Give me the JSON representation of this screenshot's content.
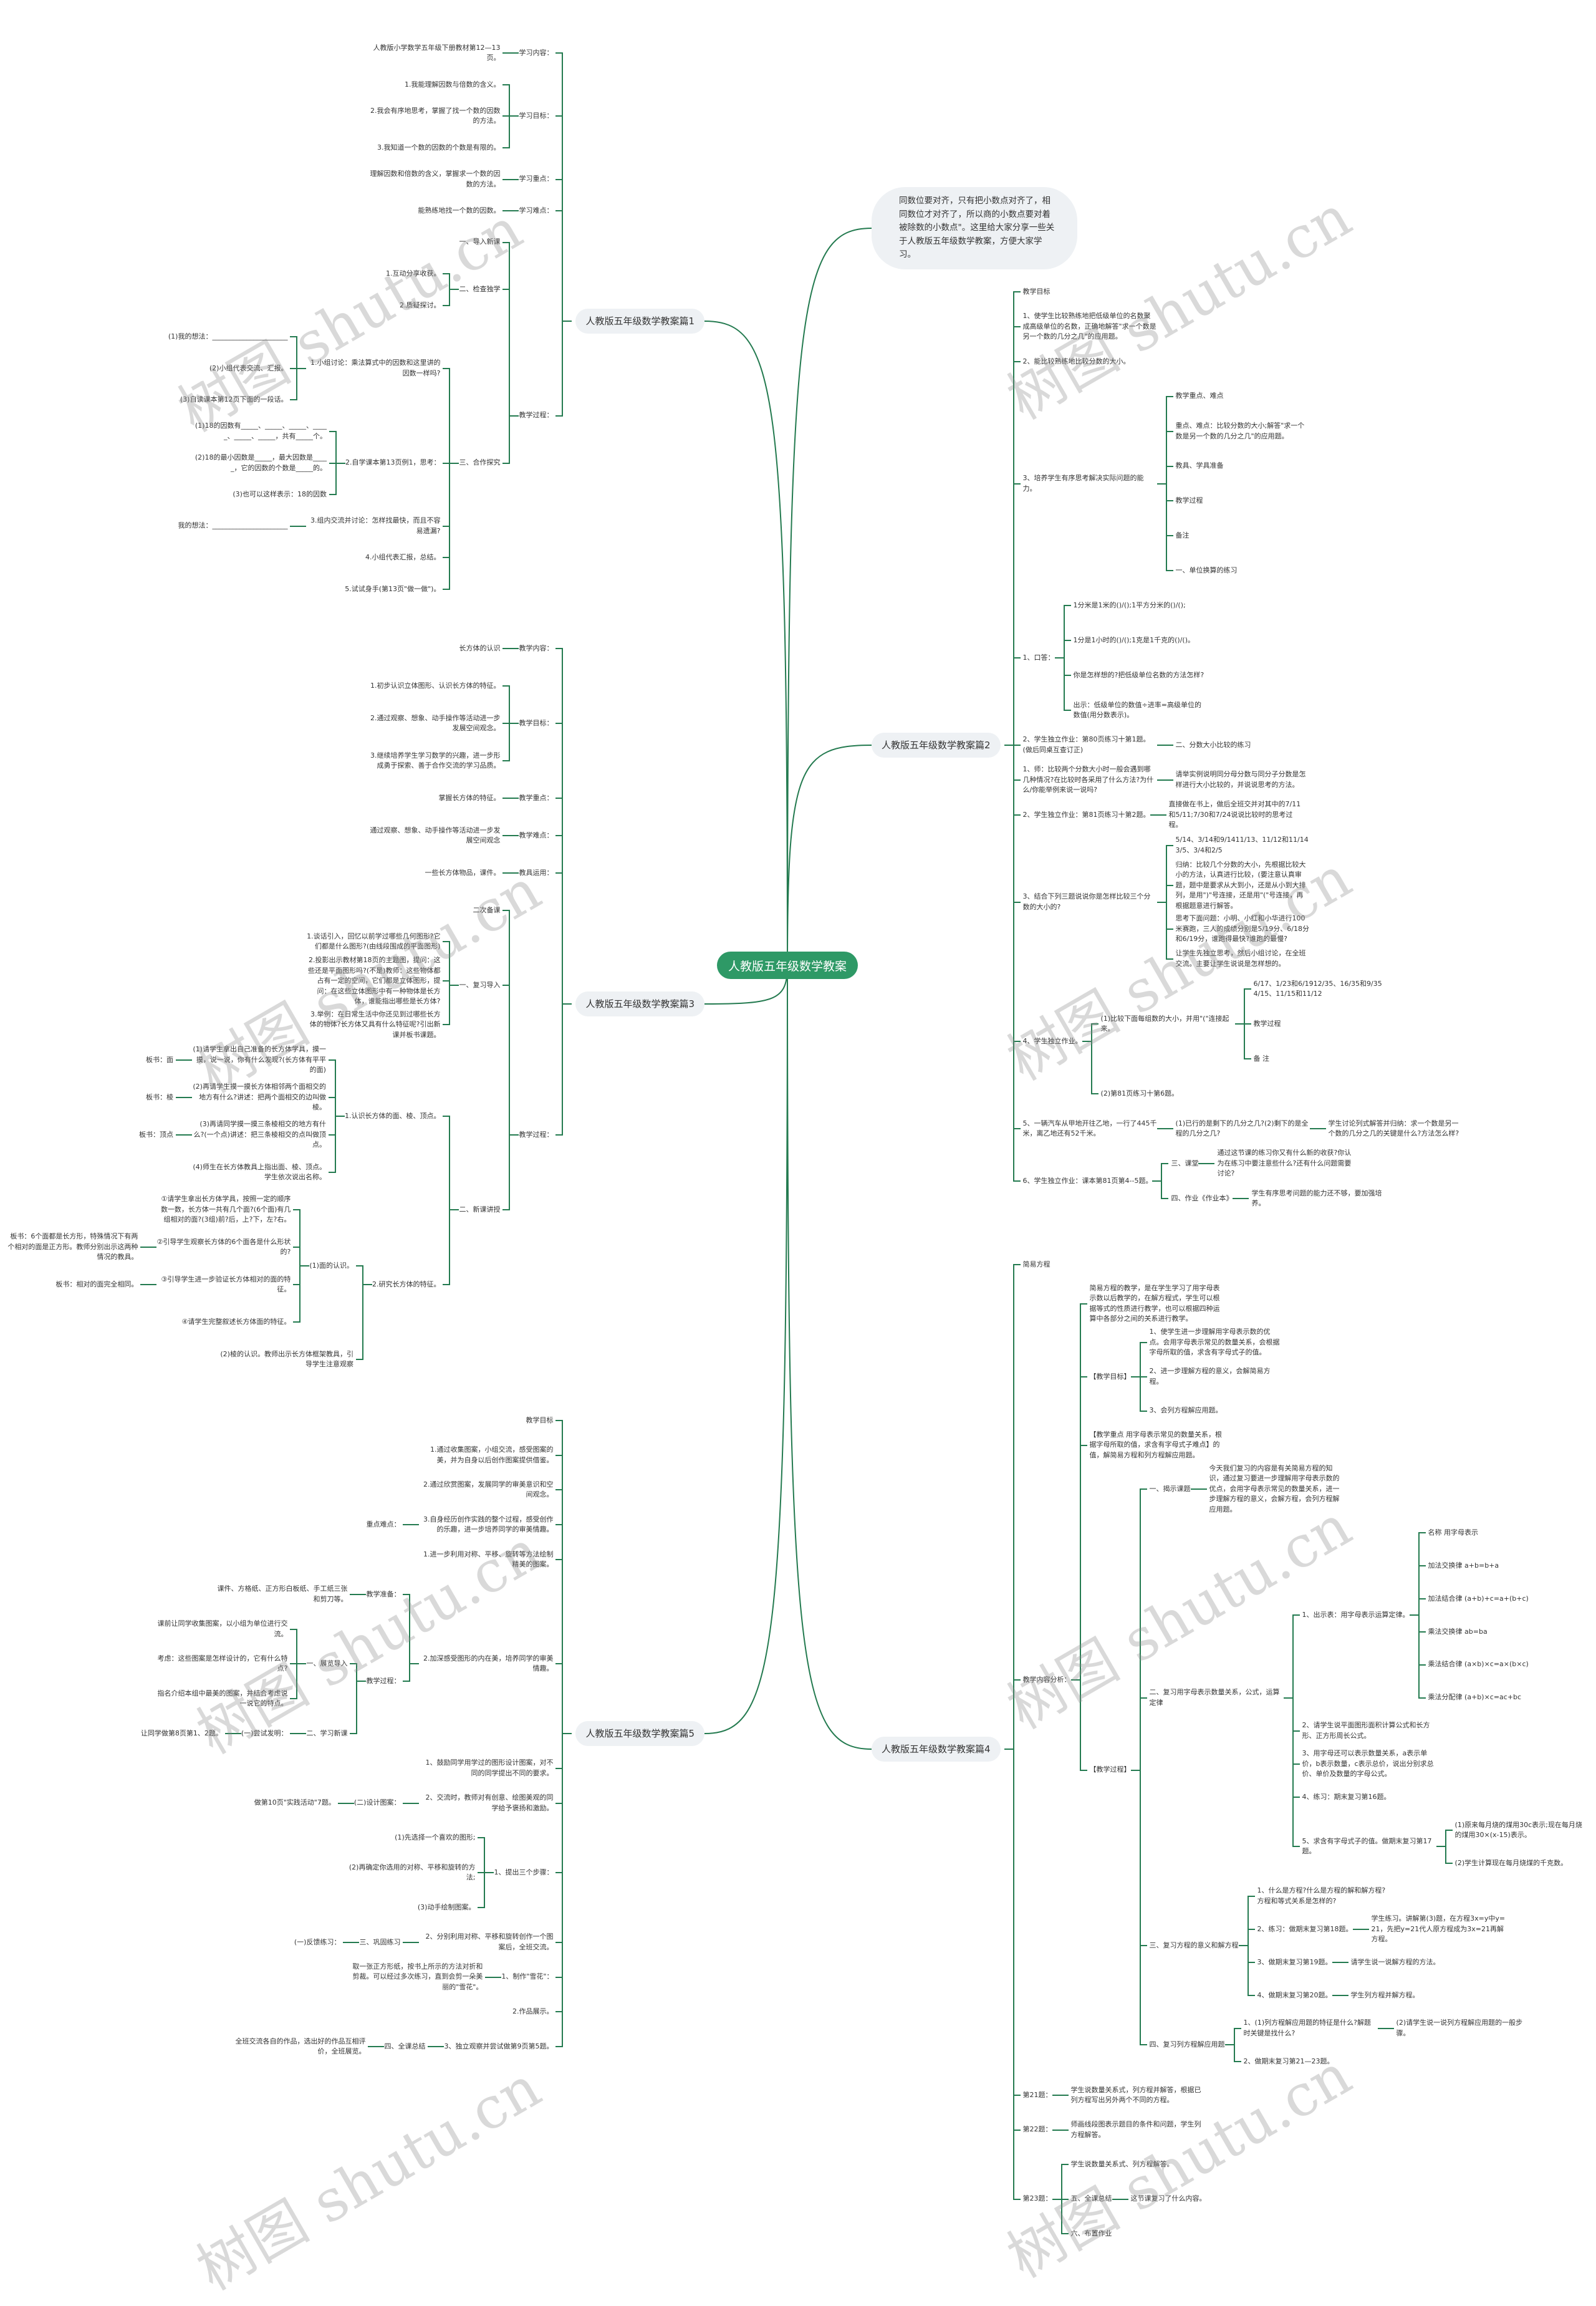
{
  "center": "人教版五年级数学教案",
  "intro": "同数位要对齐，只有把小数点对齐了，相同数位才对齐了，所以商的小数点要对着被除数的小数点\"。这里给大家分享一些关于人教版五年级数学教案，方便大家学习。",
  "watermark": "树图 shutu.cn",
  "colors": {
    "center": "#2e9966",
    "line": "#237a4f",
    "node_bg": "#eef1f4"
  },
  "left": [
    {
      "text": "人教版五年级数学教案篇1",
      "children": [
        {
          "text": "学习内容：",
          "children": [
            {
              "text": "人教版小学数学五年级下册教材第12—13页。"
            }
          ]
        },
        {
          "text": "学习目标：",
          "children": [
            {
              "text": "1.我能理解因数与倍数的含义。"
            },
            {
              "text": "2.我会有序地思考，掌握了找一个数的因数的方法。"
            },
            {
              "text": "3.我知道一个数的因数的个数是有限的。"
            }
          ]
        },
        {
          "text": "学习重点：",
          "children": [
            {
              "text": "理解因数和倍数的含义，掌握求一个数的因数的方法。"
            }
          ]
        },
        {
          "text": "学习难点：",
          "children": [
            {
              "text": "能熟练地找一个数的因数。"
            }
          ]
        },
        {
          "text": "教学过程：",
          "children": [
            {
              "text": "一、导入新课"
            },
            {
              "text": "二、检查独学",
              "children": [
                {
                  "text": "1.互动分享收获。"
                },
                {
                  "text": "2.质疑探讨。"
                }
              ]
            },
            {
              "text": "三、合作探究",
              "children": [
                {
                  "text": "1.小组讨论：乘法算式中的因数和这里讲的因数一样吗?",
                  "children": [
                    {
                      "text": "(1)我的想法：______________________"
                    },
                    {
                      "text": "(2)小组代表交流、汇报。"
                    },
                    {
                      "text": "(3)自读课本第12页下面的一段话。"
                    }
                  ]
                },
                {
                  "text": "2.自学课本第13页例1，思考：",
                  "children": [
                    {
                      "text": "(1)18的因数有_____、_____、_____、_____、_____、_____，共有_____个。"
                    },
                    {
                      "text": "(2)18的最小因数是_____，最大因数是_____，它的因数的个数是_____的。"
                    },
                    {
                      "text": "(3)也可以这样表示：18的因数"
                    }
                  ]
                },
                {
                  "text": "3.组内交流并讨论：怎样找最快，而且不容易遗漏?",
                  "children": [
                    {
                      "text": "我的想法：______________________"
                    }
                  ]
                },
                {
                  "text": "4.小组代表汇报，总结。"
                },
                {
                  "text": "5.试试身手(第13页\"做一做\")。"
                }
              ]
            }
          ]
        }
      ]
    },
    {
      "text": "人教版五年级数学教案篇3",
      "children": [
        {
          "text": "教学内容：",
          "children": [
            {
              "text": "长方体的认识"
            }
          ]
        },
        {
          "text": "教学目标：",
          "children": [
            {
              "text": "1.初步认识立体图形、认识长方体的特征。"
            },
            {
              "text": "2.通过观察、想象、动手操作等活动进一步发展空间观念。"
            },
            {
              "text": "3.继续培养学生学习数学的兴趣，进一步形成勇于探索、善于合作交流的学习品质。"
            }
          ]
        },
        {
          "text": "教学重点：",
          "children": [
            {
              "text": "掌握长方体的特征。"
            }
          ]
        },
        {
          "text": "教学难点：",
          "children": [
            {
              "text": "通过观察、想象、动手操作等活动进一步发展空间观念"
            }
          ]
        },
        {
          "text": "教具运用：",
          "children": [
            {
              "text": "一些长方体物品，课件。"
            }
          ]
        },
        {
          "text": "教学过程：",
          "children": [
            {
              "text": "二次备课"
            },
            {
              "text": "一、复习导入",
              "children": [
                {
                  "text": "1.谈话引入，回忆以前学过哪些几何图形?它们都是什么图形?(由线段围成的平面图形)"
                },
                {
                  "text": "2.投影出示教材第18页的主题图，提问：这些还是平面图形吗?(不是)教师：这些物体都占有一定的空间，它们都是立体图形，提问：在这些立体图形中有一种物体是长方体，谁能指出哪些是长方体?"
                },
                {
                  "text": "3.举例：在日常生活中你还见到过哪些长方体的物体?长方体又具有什么特征呢?引出新课并板书课题。"
                }
              ]
            },
            {
              "text": "二、新课讲授",
              "children": [
                {
                  "text": "1.认识长方体的面、棱、顶点。",
                  "children": [
                    {
                      "text": "(1)请学生拿出自己准备的长方体学具，摸一摸，说一说，你有什么发现?(长方体有平平的面)",
                      "children": [
                        {
                          "text": "板书：面"
                        }
                      ]
                    },
                    {
                      "text": "(2)再请学生摸一摸长方体相邻两个面相交的地方有什么?讲述：把两个面相交的边叫做棱。",
                      "children": [
                        {
                          "text": "板书：棱"
                        }
                      ]
                    },
                    {
                      "text": "(3)再请同学摸一摸三条棱相交的地方有什么?(一个点)讲述：把三条棱相交的点叫做顶点。",
                      "children": [
                        {
                          "text": "板书：顶点"
                        }
                      ]
                    },
                    {
                      "text": "(4)师生在长方体教具上指出面、棱、顶点。学生依次说出名称。"
                    }
                  ]
                },
                {
                  "text": "2.研究长方体的特征。",
                  "children": [
                    {
                      "text": "(1)面的认识。",
                      "children": [
                        {
                          "text": "①请学生拿出长方体学具，按照一定的顺序数一数，长方体一共有几个面?(6个面)有几组相对的面?(3组)前?后，上?下，左?右。"
                        },
                        {
                          "text": "②引导学生观察长方体的6个面各是什么形状的?",
                          "children": [
                            {
                              "text": "板书：6个面都是长方形，特殊情况下有两个相对的面是正方形。教师分别出示这两种情况的教具。"
                            }
                          ]
                        },
                        {
                          "text": "③引导学生进一步验证长方体相对的面的特征。",
                          "children": [
                            {
                              "text": "板书：相对的面完全相同。"
                            }
                          ]
                        },
                        {
                          "text": "④请学生完整叙述长方体面的特征。"
                        }
                      ]
                    },
                    {
                      "text": "(2)棱的认识。教师出示长方体框架教具，引导学生注意观察"
                    }
                  ]
                }
              ]
            }
          ]
        }
      ]
    },
    {
      "text": "人教版五年级数学教案篇5",
      "children": [
        {
          "text": "教学目标"
        },
        {
          "text": "1.通过收集图案，小组交流，感受图案的美，并为自身以后创作图案提供借鉴。"
        },
        {
          "text": "2.通过欣赏图案，发展同学的审美意识和空间观念。"
        },
        {
          "text": "3.自身经历创作实践的整个过程，感受创作的乐趣，进一步培养同学的审美情趣。",
          "children": [
            {
              "text": "重点难点："
            }
          ]
        },
        {
          "text": "1.进一步利用对称、平移、旋转等方法绘制精美的图案。"
        },
        {
          "text": "2.加深感受图形的内在美，培养同学的审美情趣。",
          "children": [
            {
              "text": "教学准备：",
              "children": [
                {
                  "text": "课件、方格纸、正方形白板纸、手工纸三张和剪刀等。"
                }
              ]
            },
            {
              "text": "教学过程：",
              "children": [
                {
                  "text": "一、展览导入",
                  "children": [
                    {
                      "text": "课前让同学收集图案，以小组为单位进行交流。"
                    },
                    {
                      "text": "考虑：这些图案是怎样设计的，它有什么特点?"
                    },
                    {
                      "text": "指名介绍本组中最美的图案，并结合考虑说一说它的特点。"
                    }
                  ]
                },
                {
                  "text": "二、学习新课",
                  "children": [
                    {
                      "text": "(一)尝试发明：",
                      "children": [
                        {
                          "text": "让同学做第8页第1、2题。"
                        }
                      ]
                    }
                  ]
                }
              ]
            }
          ]
        },
        {
          "text": "1、鼓励同学用学过的图形设计图案，对不同的同学提出不同的要求。"
        },
        {
          "text": "2、交流时，教师对有创意、绘图美观的同学给予褒扬和激励。",
          "children": [
            {
              "text": "(二)设计图案：",
              "children": [
                {
                  "text": "做第10页\"实践活动\"7题。"
                }
              ]
            }
          ]
        },
        {
          "text": "1、提出三个步骤：",
          "children": [
            {
              "text": "(1)先选择一个喜欢的图形;"
            },
            {
              "text": "(2)再确定你选用的对称、平移和旋转的方法;"
            },
            {
              "text": "(3)动手绘制图案。"
            }
          ]
        },
        {
          "text": "2、分别利用对称、平移和旋转创作一个图案后，全班交流。",
          "children": [
            {
              "text": "三、巩固练习",
              "children": [
                {
                  "text": "(一)反馈练习："
                }
              ]
            }
          ]
        },
        {
          "text": "1、制作\"雪花\"：",
          "children": [
            {
              "text": "取一张正方形纸，按书上所示的方法对折和剪裁。可以经过多次练习，直到会剪一朵美丽的\"雪花\"。"
            }
          ]
        },
        {
          "text": "2.作品展示。"
        },
        {
          "text": "3、独立观察并尝试做第9页第5题。",
          "children": [
            {
              "text": "四、全课总结",
              "children": [
                {
                  "text": "全班交流各自的作品，选出好的作品互相评价，全班展览。"
                }
              ]
            }
          ]
        }
      ]
    }
  ],
  "right": [
    {
      "text": "人教版五年级数学教案篇2",
      "children": [
        {
          "text": "教学目标"
        },
        {
          "text": "1、使学生比较熟练地把低级单位的名数聚成高级单位的名数，正确地解答\"求一个数是另一个数的几分之几\"的应用题。"
        },
        {
          "text": "2、能比较熟练地比较分数的大小。"
        },
        {
          "text": "3、培养学生有序思考解决实际问题的能力。",
          "children": [
            {
              "text": "教学重点、难点"
            },
            {
              "text": "重点、难点：比较分数的大小;解答\"求一个数是另一个数的几分之几\"的应用题。"
            },
            {
              "text": "教具、学具准备"
            },
            {
              "text": "教学过程"
            },
            {
              "text": "备注"
            },
            {
              "text": "一、单位换算的练习"
            }
          ]
        },
        {
          "text": "1、口答：",
          "children": [
            {
              "text": "1分米是1米的()/();1平方分米的()/();"
            },
            {
              "text": "1分是1小时的()/();1克是1千克的()/()。"
            },
            {
              "text": "你是怎样想的?把低级单位名数的方法怎样?"
            },
            {
              "text": "出示：低级单位的数值÷进率=高级单位的数值(用分数表示)。"
            }
          ]
        },
        {
          "text": "2、学生独立作业：第80页练习十第1题。(做后同桌互查订正)",
          "children": [
            {
              "text": "二、分数大小比较的练习"
            }
          ]
        },
        {
          "text": "1、师：比较两个分数大小时一般会遇到哪几种情况?在比较时各采用了什么方法?为什么/你能举例来说一说吗?",
          "children": [
            {
              "text": "请举实例说明同分母分数与同分子分数是怎样进行大小比较的，并说说思考的方法。"
            }
          ]
        },
        {
          "text": "2、学生独立作业：第81页练习十第2题。",
          "children": [
            {
              "text": "直接做在书上，做后全班交并对其中的7/11和5/11;7/30和7/24说说比较时的思考过程。"
            }
          ]
        },
        {
          "text": "3、结合下列三题说说你是怎样比较三个分数的大小的?",
          "children": [
            {
              "text": "5/14、3/14和9/1411/13、11/12和11/143/5、3/4和2/5"
            },
            {
              "text": "归纳：比较几个分数的大小，先根据比较大小的方法，认真进行比较，(要注意认真审题，题中是要求从大到小，还是从小到大排列，是用\")\"号连接，还是用\"(\"号连接，再根据题意进行解答。"
            },
            {
              "text": "思考下面问题：小明、小红和小华进行100米赛跑，三人的成绩分别是5/19分、6/18分和6/19分，谁跑得最快?谁跑的最慢?"
            },
            {
              "text": "让学生先独立思考，然后小组讨论，在全班交流。主要让学生说说是怎样想的。"
            }
          ]
        },
        {
          "text": "4、学生独立作业。",
          "children": [
            {
              "text": "(1)比较下面每组数的大小，并用\"(\"连接起来。",
              "children": [
                {
                  "text": "6/17、1/23和6/1912/35、16/35和9/354/15、11/15和11/12"
                },
                {
                  "text": "教学过程"
                },
                {
                  "text": "备 注"
                }
              ]
            },
            {
              "text": "(2)第81页练习十第6题。"
            }
          ]
        },
        {
          "text": "5、一辆汽车从甲地开往乙地，一行了445千米，离乙地还有52千米。",
          "children": [
            {
              "text": "(1)已行的是剩下的几分之几?(2)剩下的是全程的几分之几?",
              "children": [
                {
                  "text": "学生讨论列式解答并归纳：求一个数是另一个数的几分之几的关键是什么?方法怎么样?"
                }
              ]
            }
          ]
        },
        {
          "text": "6、学生独立作业：课本第81页第4--5题。",
          "children": [
            {
              "text": "三、课堂",
              "children": [
                {
                  "text": "通过这节课的练习你又有什么新的收获?你认为在练习中要注意些什么?还有什么问题需要讨论?"
                }
              ]
            },
            {
              "text": "四、作业《作业本》",
              "children": [
                {
                  "text": "学生有序思考问题的能力还不够，要加强培养。"
                }
              ]
            }
          ]
        }
      ]
    },
    {
      "text": "人教版五年级数学教案篇4",
      "children": [
        {
          "text": "简易方程"
        },
        {
          "text": "教学内容分析：",
          "children": [
            {
              "text": "简易方程的教学，是在学生学习了用字母表示数以后教学的，在解方程式，学生可以根据等式的性质进行教学，也可以根据四种运算中各部分之间的关系进行教学。"
            },
            {
              "text": "【教学目标】",
              "children": [
                {
                  "text": "1、使学生进一步理解用字母表示数的优点。会用字母表示常见的数量关系，会根据字母所取的值，求含有字母式子的值。"
                },
                {
                  "text": "2、进一步理解方程的意义，会解简易方程。"
                },
                {
                  "text": "3、会列方程解应用题。"
                }
              ]
            },
            {
              "text": "【教学重点 用字母表示常见的数量关系，根据字母所取的值，求含有字母式子难点】的值，解简易方程和列方程解应用题。"
            },
            {
              "text": "【教学过程】",
              "children": [
                {
                  "text": "一、揭示课题",
                  "children": [
                    {
                      "text": "今天我们复习的内容是有关简易方程的知识，通过复习要进一步理解用字母表示数的优点，会用字母表示常见的数量关系，进一步理解方程的意义，会解方程，会列方程解应用题。"
                    }
                  ]
                },
                {
                  "text": "二、复习用字母表示数量关系，公式，运算定律",
                  "children": [
                    {
                      "text": "1、出示表：用字母表示运算定律。",
                      "children": [
                        {
                          "text": "名称 用字母表示"
                        },
                        {
                          "text": "加法交换律 a+b=b+a"
                        },
                        {
                          "text": "加法结合律 (a+b)+c=a+(b+c)"
                        },
                        {
                          "text": "乘法交换律 ab=ba"
                        },
                        {
                          "text": "乘法结合律 (a×b)×c=a×(b×c)"
                        },
                        {
                          "text": "乘法分配律 (a+b)×c=ac+bc"
                        }
                      ]
                    },
                    {
                      "text": "2、请学生说平面图形面积计算公式和长方形、正方形周长公式。"
                    },
                    {
                      "text": "3、用字母还可以表示数量关系，a表示单价，b表示数量，c表示总价，说出分别求总价、单价及数量的字母公式。"
                    },
                    {
                      "text": "4、练习：期末复习第16题。"
                    },
                    {
                      "text": "5、求含有字母式子的值。做期末复习第17题。",
                      "children": [
                        {
                          "text": "(1)原来每月烧的煤用30c表示;现在每月烧的煤用30×(x-15)表示。"
                        },
                        {
                          "text": "(2)学生计算现在每月烧煤的千克数。"
                        }
                      ]
                    }
                  ]
                },
                {
                  "text": "三、复习方程的意义和解方程",
                  "children": [
                    {
                      "text": "1、什么是方程?什么是方程的解和解方程?方程和等式关系是怎样的?"
                    },
                    {
                      "text": "2、练习：做期末复习第18题。",
                      "children": [
                        {
                          "text": "学生练习。讲解第(3)题，在方程3x=y中y=21，先把y=21代人原方程成为3x=21再解方程。"
                        }
                      ]
                    },
                    {
                      "text": "3、做期末复习第19题。",
                      "children": [
                        {
                          "text": "请学生说一说解方程的方法。"
                        }
                      ]
                    },
                    {
                      "text": "4、做期末复习第20题。",
                      "children": [
                        {
                          "text": "学生列方程并解方程。"
                        }
                      ]
                    }
                  ]
                },
                {
                  "text": "四、复习列方程解应用题",
                  "children": [
                    {
                      "text": "1、(1)列方程解应用题的特征是什么?解题时关键是找什么?",
                      "children": [
                        {
                          "text": "(2)请学生说一说列方程解应用题的一般步骤。"
                        }
                      ]
                    },
                    {
                      "text": "2、做期末复习第21—23题。"
                    }
                  ]
                }
              ]
            }
          ]
        },
        {
          "text": "第21题：",
          "children": [
            {
              "text": "学生说数量关系式，列方程并解答，根据已列方程写出另外两个不同的方程。"
            }
          ]
        },
        {
          "text": "第22题：",
          "children": [
            {
              "text": "师画线段图表示题目的条件和问题，学生列方程解答。"
            }
          ]
        },
        {
          "text": "第23题：",
          "children": [
            {
              "text": "学生说数量关系式、列方程解答。"
            },
            {
              "text": "五、全课总结",
              "children": [
                {
                  "text": "这节课复习了什么内容。"
                }
              ]
            },
            {
              "text": "六、布置作业"
            }
          ]
        }
      ]
    }
  ]
}
